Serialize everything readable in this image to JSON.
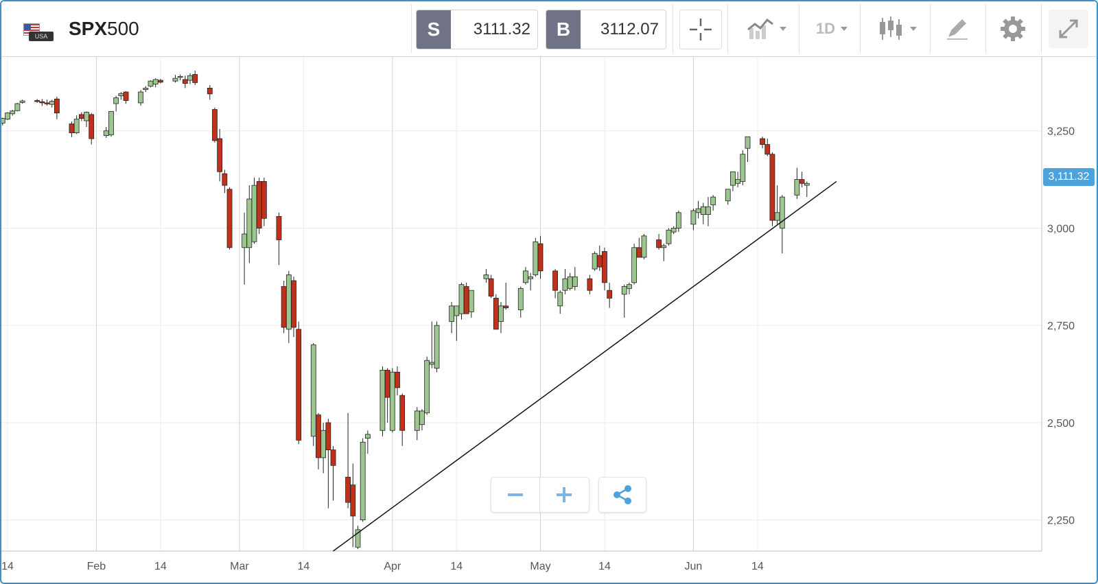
{
  "header": {
    "symbol_bold": "SPX",
    "symbol_rest": "500",
    "flag_text": "USA",
    "sell": {
      "label": "S",
      "price": "3111.32"
    },
    "buy": {
      "label": "B",
      "price": "3112.07"
    },
    "timeframe": "1D"
  },
  "icons": [
    "crosshair-icon",
    "line-chart-icon",
    "candlestick-icon",
    "pencil-icon",
    "gear-icon",
    "expand-icon",
    "share-icon",
    "minus-icon",
    "plus-icon"
  ],
  "colors": {
    "up": "#9cc58f",
    "down": "#c0311c",
    "tag_bg": "#4aa3dd",
    "frame": "#3a8fd0"
  },
  "current_price_label": "3,111.32",
  "chart_data": {
    "type": "candlestick",
    "title": "",
    "ylim": [
      2170,
      3440
    ],
    "y_ticks": [
      {
        "value": 2250,
        "label": "2,250"
      },
      {
        "value": 2500,
        "label": "2,500"
      },
      {
        "value": 2750,
        "label": "2,750"
      },
      {
        "value": 3000,
        "label": "3,000"
      },
      {
        "value": 3250,
        "label": "3,250"
      }
    ],
    "x_ticks": [
      {
        "date": "2020-01-14",
        "label": "14"
      },
      {
        "date": "2020-02-01",
        "label": "Feb"
      },
      {
        "date": "2020-02-14",
        "label": "14"
      },
      {
        "date": "2020-03-01",
        "label": "Mar"
      },
      {
        "date": "2020-03-14",
        "label": "14"
      },
      {
        "date": "2020-04-01",
        "label": "Apr"
      },
      {
        "date": "2020-04-14",
        "label": "14"
      },
      {
        "date": "2020-05-01",
        "label": "May"
      },
      {
        "date": "2020-05-14",
        "label": "14"
      },
      {
        "date": "2020-06-01",
        "label": "Jun"
      },
      {
        "date": "2020-06-14",
        "label": "14"
      }
    ],
    "trendline": {
      "from": {
        "date": "2020-03-20",
        "value": 2170
      },
      "to": {
        "date": "2020-06-30",
        "value": 3120
      }
    },
    "last_price": 3111.32,
    "candles": [
      [
        "2020-01-13",
        3270,
        3284,
        3264,
        3282
      ],
      [
        "2020-01-14",
        3280,
        3298,
        3278,
        3296
      ],
      [
        "2020-01-15",
        3294,
        3304,
        3289,
        3301
      ],
      [
        "2020-01-16",
        3302,
        3322,
        3300,
        3320
      ],
      [
        "2020-01-17",
        3323,
        3330,
        3320,
        3327
      ],
      [
        "2020-01-20",
        3328,
        3332,
        3322,
        3326
      ],
      [
        "2020-01-21",
        3325,
        3332,
        3314,
        3322
      ],
      [
        "2020-01-22",
        3322,
        3330,
        3315,
        3320
      ],
      [
        "2020-01-23",
        3318,
        3330,
        3310,
        3326
      ],
      [
        "2020-01-24",
        3332,
        3338,
        3280,
        3296
      ],
      [
        "2020-01-27",
        3268,
        3274,
        3234,
        3245
      ],
      [
        "2020-01-28",
        3245,
        3290,
        3242,
        3280
      ],
      [
        "2020-01-29",
        3292,
        3298,
        3275,
        3282
      ],
      [
        "2020-01-30",
        3276,
        3300,
        3260,
        3298
      ],
      [
        "2020-01-31",
        3292,
        3296,
        3215,
        3230
      ],
      [
        "2020-02-03",
        3238,
        3260,
        3232,
        3250
      ],
      [
        "2020-02-04",
        3240,
        3300,
        3235,
        3300
      ],
      [
        "2020-02-05",
        3320,
        3340,
        3300,
        3335
      ],
      [
        "2020-02-06",
        3340,
        3350,
        3330,
        3346
      ],
      [
        "2020-02-07",
        3350,
        3352,
        3320,
        3328
      ],
      [
        "2020-02-10",
        3322,
        3355,
        3315,
        3350
      ],
      [
        "2020-02-11",
        3356,
        3365,
        3350,
        3360
      ],
      [
        "2020-02-12",
        3365,
        3380,
        3362,
        3378
      ],
      [
        "2020-02-13",
        3370,
        3385,
        3362,
        3382
      ],
      [
        "2020-02-14",
        3380,
        3384,
        3372,
        3375
      ],
      [
        "2020-02-17",
        3378,
        3394,
        3374,
        3385
      ],
      [
        "2020-02-18",
        3388,
        3395,
        3380,
        3390
      ],
      [
        "2020-02-19",
        3382,
        3392,
        3360,
        3372
      ],
      [
        "2020-02-20",
        3380,
        3398,
        3370,
        3392
      ],
      [
        "2020-02-21",
        3395,
        3405,
        3368,
        3374
      ],
      [
        "2020-02-24",
        3360,
        3368,
        3330,
        3345
      ],
      [
        "2020-02-25",
        3305,
        3310,
        3220,
        3225
      ],
      [
        "2020-02-26",
        3230,
        3255,
        3120,
        3145
      ],
      [
        "2020-02-27",
        3140,
        3150,
        3090,
        3110
      ],
      [
        "2020-02-28",
        3100,
        3105,
        2945,
        2950
      ],
      [
        "2020-03-02",
        2950,
        3040,
        2855,
        2985
      ],
      [
        "2020-03-03",
        2950,
        3110,
        2910,
        3075
      ],
      [
        "2020-03-04",
        2965,
        3130,
        2960,
        3110
      ],
      [
        "2020-03-05",
        3120,
        3130,
        2985,
        3000
      ],
      [
        "2020-03-06",
        3120,
        3130,
        3005,
        3025
      ],
      [
        "2020-03-09",
        3030,
        3040,
        2905,
        2970
      ],
      [
        "2020-03-10",
        2850,
        2865,
        2730,
        2745
      ],
      [
        "2020-03-11",
        2740,
        2890,
        2705,
        2880
      ],
      [
        "2020-03-12",
        2865,
        2875,
        2720,
        2745
      ],
      [
        "2020-03-13",
        2740,
        2760,
        2445,
        2455
      ],
      [
        "2020-03-16",
        2465,
        2705,
        2440,
        2700
      ],
      [
        "2020-03-17",
        2520,
        2525,
        2380,
        2410
      ],
      [
        "2020-03-18",
        2410,
        2500,
        2370,
        2480
      ],
      [
        "2020-03-19",
        2500,
        2510,
        2280,
        2430
      ],
      [
        "2020-03-20",
        2430,
        2440,
        2300,
        2390
      ],
      [
        "2020-03-23",
        2360,
        2525,
        2280,
        2295
      ],
      [
        "2020-03-24",
        2340,
        2395,
        2180,
        2260
      ],
      [
        "2020-03-25",
        2180,
        2235,
        2175,
        2225
      ],
      [
        "2020-03-26",
        2250,
        2460,
        2245,
        2450
      ],
      [
        "2020-03-27",
        2460,
        2480,
        2420,
        2470
      ],
      [
        "2020-03-30",
        2480,
        2645,
        2465,
        2635
      ],
      [
        "2020-03-31",
        2635,
        2640,
        2500,
        2565
      ],
      [
        "2020-04-01",
        2480,
        2640,
        2475,
        2630
      ],
      [
        "2020-04-02",
        2630,
        2645,
        2570,
        2590
      ],
      [
        "2020-04-03",
        2570,
        2575,
        2440,
        2480
      ],
      [
        "2020-04-06",
        2480,
        2540,
        2455,
        2530
      ],
      [
        "2020-04-07",
        2495,
        2535,
        2480,
        2530
      ],
      [
        "2020-04-08",
        2525,
        2670,
        2520,
        2660
      ],
      [
        "2020-04-09",
        2650,
        2760,
        2640,
        2655
      ],
      [
        "2020-04-10",
        2640,
        2760,
        2630,
        2750
      ],
      [
        "2020-04-13",
        2760,
        2810,
        2730,
        2800
      ],
      [
        "2020-04-14",
        2775,
        2800,
        2710,
        2800
      ],
      [
        "2020-04-15",
        2780,
        2860,
        2765,
        2855
      ],
      [
        "2020-04-16",
        2850,
        2860,
        2780,
        2780
      ],
      [
        "2020-04-17",
        2785,
        2840,
        2770,
        2840
      ],
      [
        "2020-04-20",
        2870,
        2895,
        2860,
        2880
      ],
      [
        "2020-04-21",
        2870,
        2880,
        2820,
        2825
      ],
      [
        "2020-04-22",
        2820,
        2830,
        2740,
        2740
      ],
      [
        "2020-04-23",
        2760,
        2810,
        2730,
        2800
      ],
      [
        "2020-04-24",
        2800,
        2860,
        2790,
        2795
      ],
      [
        "2020-04-27",
        2790,
        2850,
        2770,
        2845
      ],
      [
        "2020-04-28",
        2860,
        2900,
        2855,
        2890
      ],
      [
        "2020-04-29",
        2870,
        2885,
        2840,
        2875
      ],
      [
        "2020-04-30",
        2880,
        2975,
        2875,
        2965
      ],
      [
        "2020-05-01",
        2960,
        2980,
        2870,
        2890
      ],
      [
        "2020-05-04",
        2890,
        2895,
        2820,
        2840
      ],
      [
        "2020-05-05",
        2800,
        2840,
        2780,
        2835
      ],
      [
        "2020-05-06",
        2840,
        2895,
        2830,
        2870
      ],
      [
        "2020-05-07",
        2845,
        2885,
        2840,
        2875
      ],
      [
        "2020-05-08",
        2850,
        2900,
        2840,
        2875
      ],
      [
        "2020-05-11",
        2870,
        2880,
        2830,
        2840
      ],
      [
        "2020-05-12",
        2895,
        2940,
        2890,
        2935
      ],
      [
        "2020-05-13",
        2930,
        2955,
        2890,
        2900
      ],
      [
        "2020-05-14",
        2940,
        2950,
        2840,
        2860
      ],
      [
        "2020-05-15",
        2840,
        2860,
        2795,
        2820
      ],
      [
        "2020-05-18",
        2830,
        2855,
        2770,
        2850
      ],
      [
        "2020-05-19",
        2845,
        2860,
        2830,
        2855
      ],
      [
        "2020-05-20",
        2860,
        2960,
        2855,
        2950
      ],
      [
        "2020-05-21",
        2950,
        2975,
        2925,
        2925
      ],
      [
        "2020-05-22",
        2925,
        2985,
        2920,
        2980
      ],
      [
        "2020-05-25",
        2970,
        2985,
        2945,
        2950
      ],
      [
        "2020-05-26",
        2950,
        2960,
        2915,
        2955
      ],
      [
        "2020-05-27",
        2960,
        3000,
        2955,
        2995
      ],
      [
        "2020-05-28",
        2990,
        3005,
        2985,
        3000
      ],
      [
        "2020-05-29",
        3000,
        3045,
        2990,
        3040
      ],
      [
        "2020-06-01",
        3010,
        3050,
        2995,
        3045
      ],
      [
        "2020-06-02",
        3040,
        3070,
        3025,
        3050
      ],
      [
        "2020-06-03",
        3035,
        3065,
        3010,
        3055
      ],
      [
        "2020-06-04",
        3035,
        3080,
        3005,
        3055
      ],
      [
        "2020-06-05",
        3060,
        3085,
        3045,
        3080
      ],
      [
        "2020-06-08",
        3070,
        3100,
        3060,
        3100
      ],
      [
        "2020-06-09",
        3110,
        3140,
        3095,
        3145
      ],
      [
        "2020-06-10",
        3115,
        3145,
        3105,
        3125
      ],
      [
        "2020-06-11",
        3120,
        3200,
        3110,
        3190
      ],
      [
        "2020-06-12",
        3205,
        3235,
        3170,
        3235
      ],
      [
        "2020-06-15",
        3230,
        3235,
        3205,
        3215
      ],
      [
        "2020-06-16",
        3215,
        3230,
        3185,
        3190
      ],
      [
        "2020-06-17",
        3190,
        3195,
        3005,
        3020
      ],
      [
        "2020-06-18",
        3020,
        3110,
        3010,
        3040
      ],
      [
        "2020-06-19",
        3000,
        3085,
        2935,
        3080
      ],
      [
        "2020-06-22",
        3085,
        3155,
        3075,
        3125
      ],
      [
        "2020-06-23",
        3125,
        3145,
        3105,
        3115
      ],
      [
        "2020-06-24",
        3110,
        3120,
        3080,
        3115
      ]
    ]
  }
}
